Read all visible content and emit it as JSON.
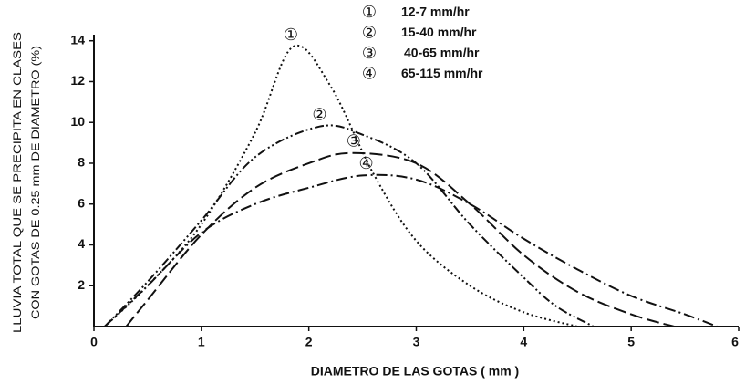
{
  "chart_data": {
    "type": "line",
    "xlabel": "DIAMETRO DE LAS GOTAS   ( mm )",
    "ylabel": [
      "LLUVIA TOTAL QUE SE PRECIPITA EN CLASES",
      "CON GOTAS DE 0.25 mm DE DIAMETRO (%)"
    ],
    "xlim": [
      0,
      6
    ],
    "ylim": [
      0,
      14.3
    ],
    "xticks": [
      0,
      1,
      2,
      3,
      4,
      5,
      6
    ],
    "yticks": [
      2,
      4,
      6,
      8,
      10,
      12,
      14
    ],
    "series": [
      {
        "name": "12-7 mm/hr",
        "symbol": "①",
        "color": "#111",
        "dash": "2,3",
        "x": [
          0.1,
          0.5,
          1,
          1.5,
          1.85,
          2.2,
          2.6,
          3,
          3.5,
          4,
          4.5
        ],
        "values": [
          0,
          2,
          5,
          9.5,
          13.7,
          11.8,
          7.5,
          4.2,
          2,
          0.7,
          0
        ]
      },
      {
        "name": "15-40 mm/hr",
        "symbol": "②",
        "color": "#111",
        "dash": "10,3,2,3,2,3",
        "x": [
          0.1,
          0.5,
          1,
          1.5,
          2.1,
          2.5,
          3,
          3.5,
          4,
          4.3,
          4.65
        ],
        "values": [
          0,
          2.2,
          5.2,
          8.3,
          9.8,
          9.4,
          8,
          5,
          2.4,
          1,
          0
        ]
      },
      {
        "name": "40-65 mm/hr",
        "symbol": "③",
        "color": "#111",
        "dash": "14,5",
        "x": [
          0.3,
          0.5,
          1,
          1.5,
          2,
          2.4,
          3,
          3.5,
          4,
          4.5,
          5,
          5.4
        ],
        "values": [
          0,
          1.3,
          4.5,
          6.8,
          8,
          8.5,
          8,
          6,
          3.5,
          1.7,
          0.6,
          0
        ]
      },
      {
        "name": "65-115 mm/hr",
        "symbol": "④",
        "color": "#111",
        "dash": "12,4,2,4",
        "x": [
          0.1,
          0.5,
          1,
          1.5,
          2,
          2.5,
          3,
          3.5,
          4,
          4.5,
          5,
          5.5,
          5.8
        ],
        "values": [
          0,
          2,
          4.6,
          6,
          6.8,
          7.4,
          7.2,
          6,
          4.3,
          2.8,
          1.5,
          0.6,
          0
        ]
      }
    ]
  }
}
